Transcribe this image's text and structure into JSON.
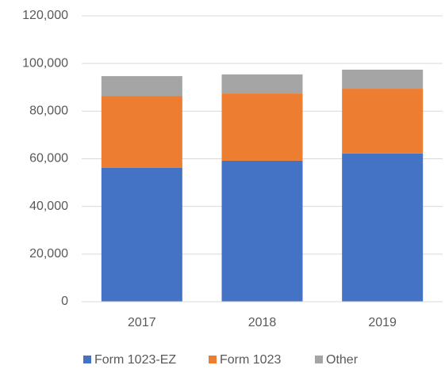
{
  "chart_data": {
    "type": "stacked_bar",
    "categories": [
      "2017",
      "2018",
      "2019"
    ],
    "series": [
      {
        "name": "Form 1023-EZ",
        "color": "#4472c4",
        "values": [
          56200,
          59200,
          62200
        ]
      },
      {
        "name": "Form 1023",
        "color": "#ed7d31",
        "values": [
          30200,
          28200,
          27200
        ]
      },
      {
        "name": "Other",
        "color": "#a5a5a5",
        "values": [
          8300,
          8000,
          8000
        ]
      }
    ],
    "ylim": [
      0,
      120000
    ],
    "yticks": [
      0,
      {
        "value": 20000,
        "label": "20,000"
      },
      {
        "value": 40000,
        "label": "40,000"
      },
      {
        "value": 60000,
        "label": "60,000"
      },
      {
        "value": 80000,
        "label": "80,000"
      },
      {
        "value": 100000,
        "label": "100,000"
      },
      {
        "value": 120000,
        "label": "120,000"
      }
    ],
    "grid": true,
    "legend": "bottom"
  }
}
